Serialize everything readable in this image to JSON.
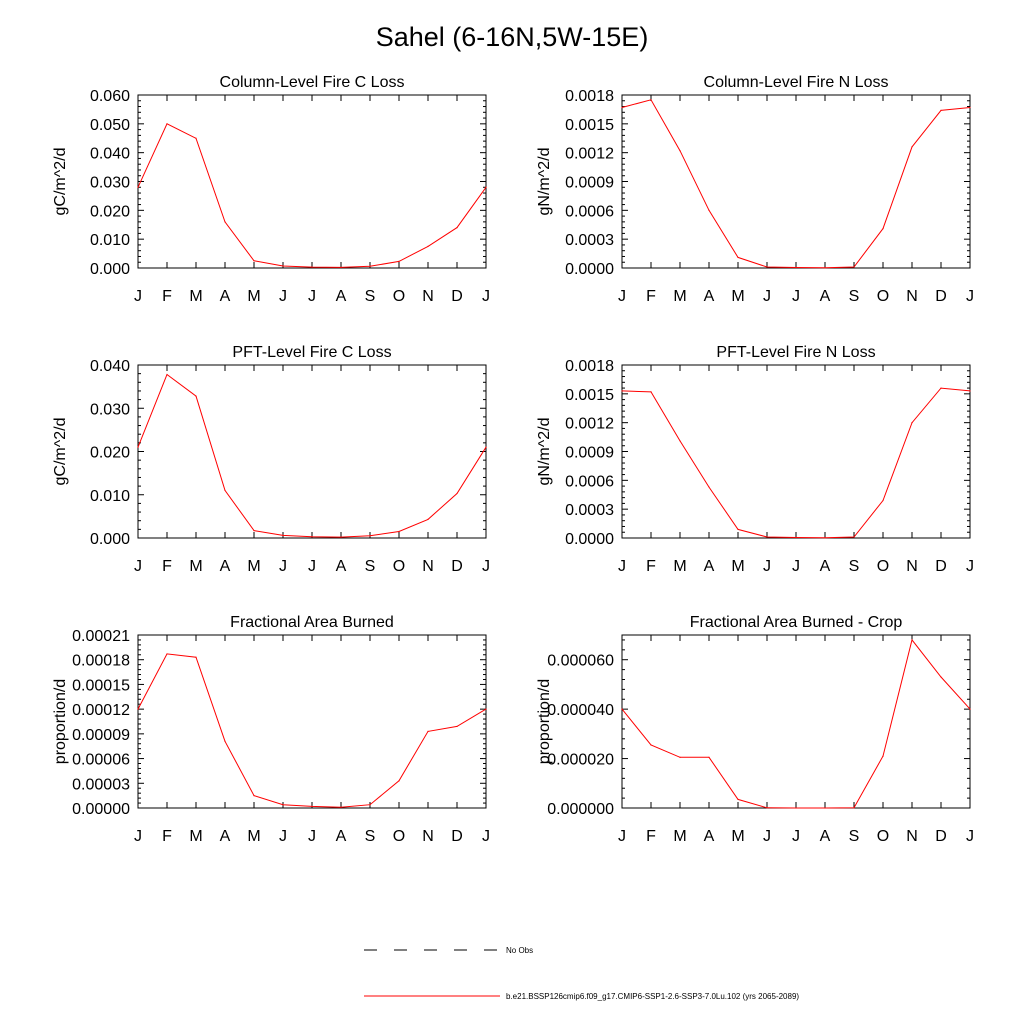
{
  "figure_title": "Sahel (6-16N,5W-15E)",
  "colors": {
    "model_line": "#ff0000",
    "obs_line": "#000000",
    "axis": "#000000"
  },
  "legend": {
    "entries": [
      {
        "label": "No Obs",
        "style": "dashed",
        "color": "#000000"
      },
      {
        "label": "b.e21.BSSP126cmip6.f09_g17.CMIP6-SSP1-2.6-SSP3-7.0Lu.102 (yrs 2065-2089)",
        "style": "solid",
        "color": "#ff0000"
      }
    ]
  },
  "chart_data": [
    {
      "type": "line",
      "title": "Column-Level Fire C Loss",
      "ylabel": "gC/m^2/d",
      "categories": [
        "J",
        "F",
        "M",
        "A",
        "M",
        "J",
        "J",
        "A",
        "S",
        "O",
        "N",
        "D",
        "J"
      ],
      "ylim": [
        0,
        0.06
      ],
      "yticks": [
        "0.000",
        "0.010",
        "0.020",
        "0.030",
        "0.040",
        "0.050",
        "0.060"
      ],
      "series": [
        {
          "values": [
            0.028,
            0.05,
            0.045,
            0.016,
            0.0025,
            0.0007,
            0.0003,
            0.0002,
            0.0006,
            0.0023,
            0.0075,
            0.014,
            0.028
          ]
        }
      ]
    },
    {
      "type": "line",
      "title": "Column-Level Fire N Loss",
      "ylabel": "gN/m^2/d",
      "categories": [
        "J",
        "F",
        "M",
        "A",
        "M",
        "J",
        "J",
        "A",
        "S",
        "O",
        "N",
        "D",
        "J"
      ],
      "ylim": [
        0,
        0.0018
      ],
      "yticks": [
        "0.0000",
        "0.0003",
        "0.0006",
        "0.0009",
        "0.0012",
        "0.0015",
        "0.0018"
      ],
      "series": [
        {
          "values": [
            0.00167,
            0.00175,
            0.00122,
            0.0006,
            0.00011,
            1e-05,
            5e-06,
            3e-06,
            1e-05,
            0.00041,
            0.00126,
            0.00164,
            0.00167
          ]
        }
      ]
    },
    {
      "type": "line",
      "title": "PFT-Level Fire C Loss",
      "ylabel": "gC/m^2/d",
      "categories": [
        "J",
        "F",
        "M",
        "A",
        "M",
        "J",
        "J",
        "A",
        "S",
        "O",
        "N",
        "D",
        "J"
      ],
      "ylim": [
        0,
        0.04
      ],
      "yticks": [
        "0.000",
        "0.010",
        "0.020",
        "0.030",
        "0.040"
      ],
      "series": [
        {
          "values": [
            0.021,
            0.0378,
            0.0328,
            0.011,
            0.0017,
            0.0006,
            0.0003,
            0.0002,
            0.0005,
            0.0015,
            0.0043,
            0.0103,
            0.021
          ]
        }
      ]
    },
    {
      "type": "line",
      "title": "PFT-Level Fire N Loss",
      "ylabel": "gN/m^2/d",
      "categories": [
        "J",
        "F",
        "M",
        "A",
        "M",
        "J",
        "J",
        "A",
        "S",
        "O",
        "N",
        "D",
        "J"
      ],
      "ylim": [
        0,
        0.0018
      ],
      "yticks": [
        "0.0000",
        "0.0003",
        "0.0006",
        "0.0009",
        "0.0012",
        "0.0015",
        "0.0018"
      ],
      "series": [
        {
          "values": [
            0.00153,
            0.00152,
            0.00101,
            0.00053,
            9e-05,
            1e-05,
            5e-06,
            3e-06,
            1e-05,
            0.00039,
            0.0012,
            0.00156,
            0.00153
          ]
        }
      ]
    },
    {
      "type": "line",
      "title": "Fractional Area Burned",
      "ylabel": "proportion/d",
      "categories": [
        "J",
        "F",
        "M",
        "A",
        "M",
        "J",
        "J",
        "A",
        "S",
        "O",
        "N",
        "D",
        "J"
      ],
      "ylim": [
        0,
        0.00021
      ],
      "yticks": [
        "0.00000",
        "0.00003",
        "0.00006",
        "0.00009",
        "0.00012",
        "0.00015",
        "0.00018",
        "0.00021"
      ],
      "series": [
        {
          "values": [
            0.00012,
            0.000187,
            0.000183,
            8.1e-05,
            1.5e-05,
            4e-06,
            2e-06,
            1e-06,
            4e-06,
            3.3e-05,
            9.3e-05,
            9.9e-05,
            0.00012
          ]
        }
      ]
    },
    {
      "type": "line",
      "title": "Fractional Area Burned - Crop",
      "ylabel": "proportion/d",
      "categories": [
        "J",
        "F",
        "M",
        "A",
        "M",
        "J",
        "J",
        "A",
        "S",
        "O",
        "N",
        "D",
        "J"
      ],
      "ylim": [
        0,
        7e-05
      ],
      "yticks": [
        "0.000000",
        "0.000020",
        "0.000040",
        "0.000060"
      ],
      "ytick_values": [
        0,
        2e-05,
        4e-05,
        6e-05
      ],
      "series": [
        {
          "values": [
            4e-05,
            2.55e-05,
            2.05e-05,
            2.05e-05,
            3.5e-06,
            1e-07,
            0.0,
            0.0,
            1e-07,
            2.1e-05,
            6.8e-05,
            5.3e-05,
            4e-05
          ]
        }
      ]
    }
  ]
}
